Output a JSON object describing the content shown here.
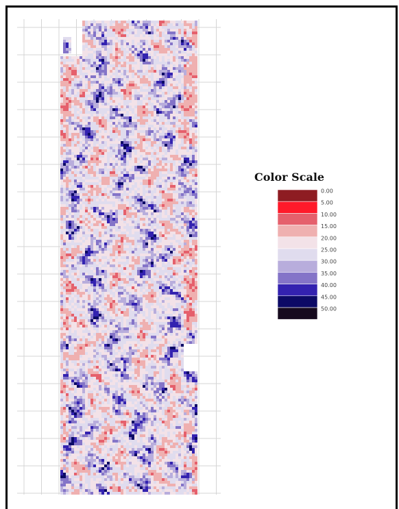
{
  "legend": {
    "title": "Color Scale",
    "labels": [
      "0.00",
      "5.00",
      "10.00",
      "15.00",
      "20.00",
      "25.00",
      "30.00",
      "35.00",
      "40.00",
      "45.00",
      "50.00"
    ],
    "colors": [
      "#8e1c22",
      "#ff1a2a",
      "#e5606c",
      "#efb0b0",
      "#f3e2e8",
      "#e0dcee",
      "#b8addc",
      "#8474c8",
      "#3322b0",
      "#0c0a66",
      "#160a1e"
    ]
  }
}
